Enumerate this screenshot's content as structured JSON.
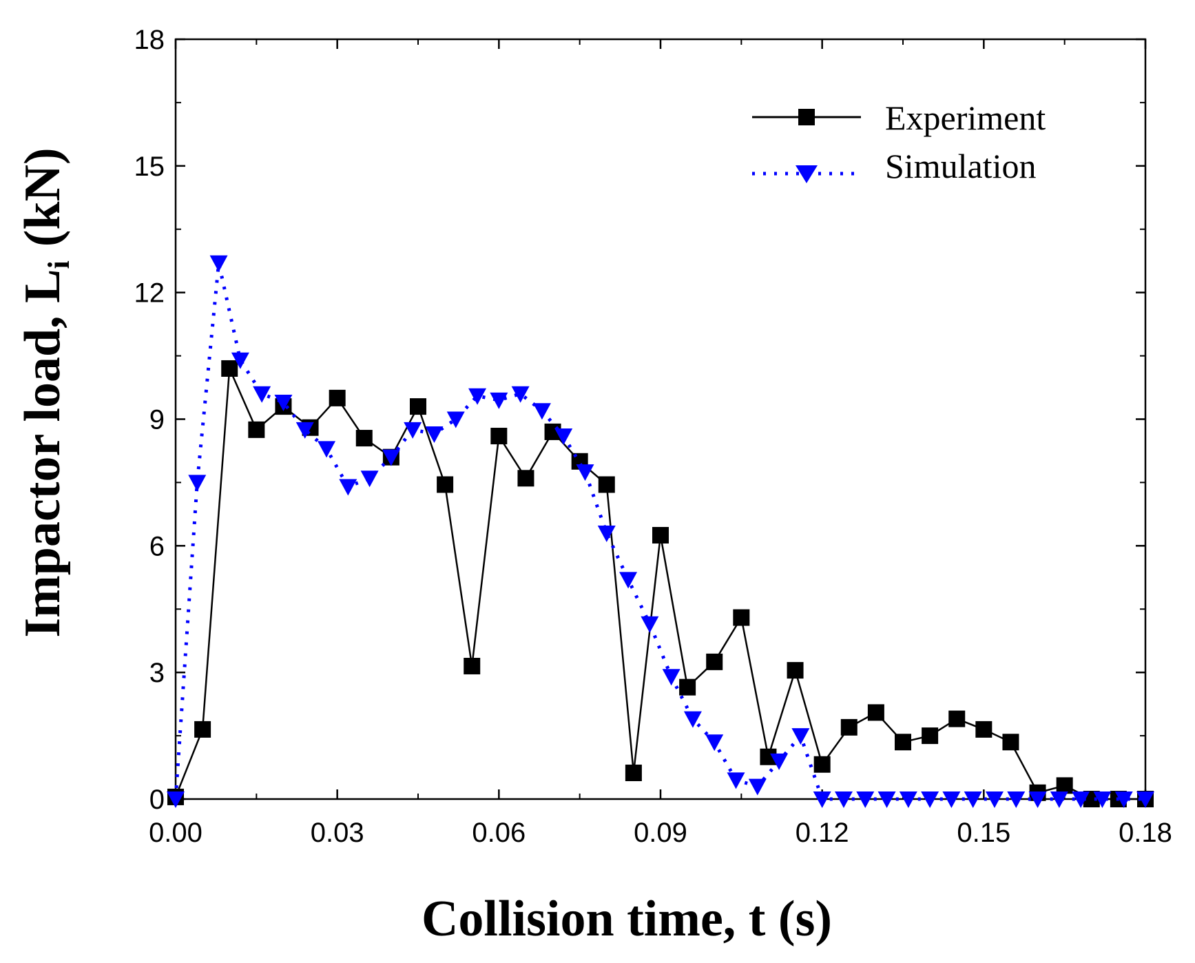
{
  "chart_data": {
    "type": "line",
    "xlabel": "Collision time, t (s)",
    "ylabel_main": "Impactor load, L",
    "ylabel_sub": "i",
    "ylabel_unit": "(kN)",
    "xlim": [
      0,
      0.18
    ],
    "ylim": [
      0,
      18
    ],
    "x_ticks": [
      0.0,
      0.03,
      0.06,
      0.09,
      0.12,
      0.15,
      0.18
    ],
    "x_tick_labels": [
      "0.00",
      "0.03",
      "0.06",
      "0.09",
      "0.12",
      "0.15",
      "0.18"
    ],
    "y_ticks": [
      0,
      3,
      6,
      9,
      12,
      15,
      18
    ],
    "y_tick_labels": [
      "0",
      "3",
      "6",
      "9",
      "12",
      "15",
      "18"
    ],
    "grid": false,
    "legend_position": "top-right",
    "series": [
      {
        "name": "Experiment",
        "color": "#000000",
        "marker": "square",
        "line": "solid",
        "x": [
          0.0,
          0.005,
          0.01,
          0.015,
          0.02,
          0.025,
          0.03,
          0.035,
          0.04,
          0.045,
          0.05,
          0.055,
          0.06,
          0.065,
          0.07,
          0.075,
          0.08,
          0.085,
          0.09,
          0.095,
          0.1,
          0.105,
          0.11,
          0.115,
          0.12,
          0.125,
          0.13,
          0.135,
          0.14,
          0.145,
          0.15,
          0.155,
          0.16,
          0.165,
          0.17,
          0.175,
          0.18
        ],
        "y": [
          0.05,
          1.65,
          10.2,
          8.75,
          9.3,
          8.8,
          9.5,
          8.55,
          8.1,
          9.3,
          7.45,
          3.15,
          8.6,
          7.6,
          8.7,
          8.0,
          7.45,
          0.62,
          6.25,
          2.65,
          3.25,
          4.3,
          1.0,
          3.05,
          0.82,
          1.7,
          2.05,
          1.35,
          1.5,
          1.9,
          1.65,
          1.35,
          0.15,
          0.32,
          0.0,
          0.0,
          0.0
        ]
      },
      {
        "name": "Simulation",
        "color": "#0000ff",
        "marker": "triangle-down",
        "line": "dotted",
        "x": [
          0.0,
          0.004,
          0.008,
          0.012,
          0.016,
          0.02,
          0.024,
          0.028,
          0.032,
          0.036,
          0.04,
          0.044,
          0.048,
          0.052,
          0.056,
          0.06,
          0.064,
          0.068,
          0.072,
          0.076,
          0.08,
          0.084,
          0.088,
          0.092,
          0.096,
          0.1,
          0.104,
          0.108,
          0.112,
          0.116,
          0.12,
          0.124,
          0.128,
          0.132,
          0.136,
          0.14,
          0.144,
          0.148,
          0.152,
          0.156,
          0.16,
          0.164,
          0.168,
          0.172,
          0.176,
          0.18
        ],
        "y": [
          0.0,
          7.5,
          12.7,
          10.4,
          9.6,
          9.4,
          8.75,
          8.3,
          7.4,
          7.6,
          8.1,
          8.75,
          8.65,
          9.0,
          9.55,
          9.45,
          9.6,
          9.2,
          8.6,
          7.75,
          6.3,
          5.2,
          4.15,
          2.9,
          1.9,
          1.35,
          0.45,
          0.3,
          0.9,
          1.5,
          0.0,
          0.0,
          0.0,
          0.0,
          0.0,
          0.0,
          0.0,
          0.0,
          0.0,
          0.0,
          0.0,
          0.0,
          0.0,
          0.0,
          0.0,
          0.0
        ]
      }
    ]
  }
}
